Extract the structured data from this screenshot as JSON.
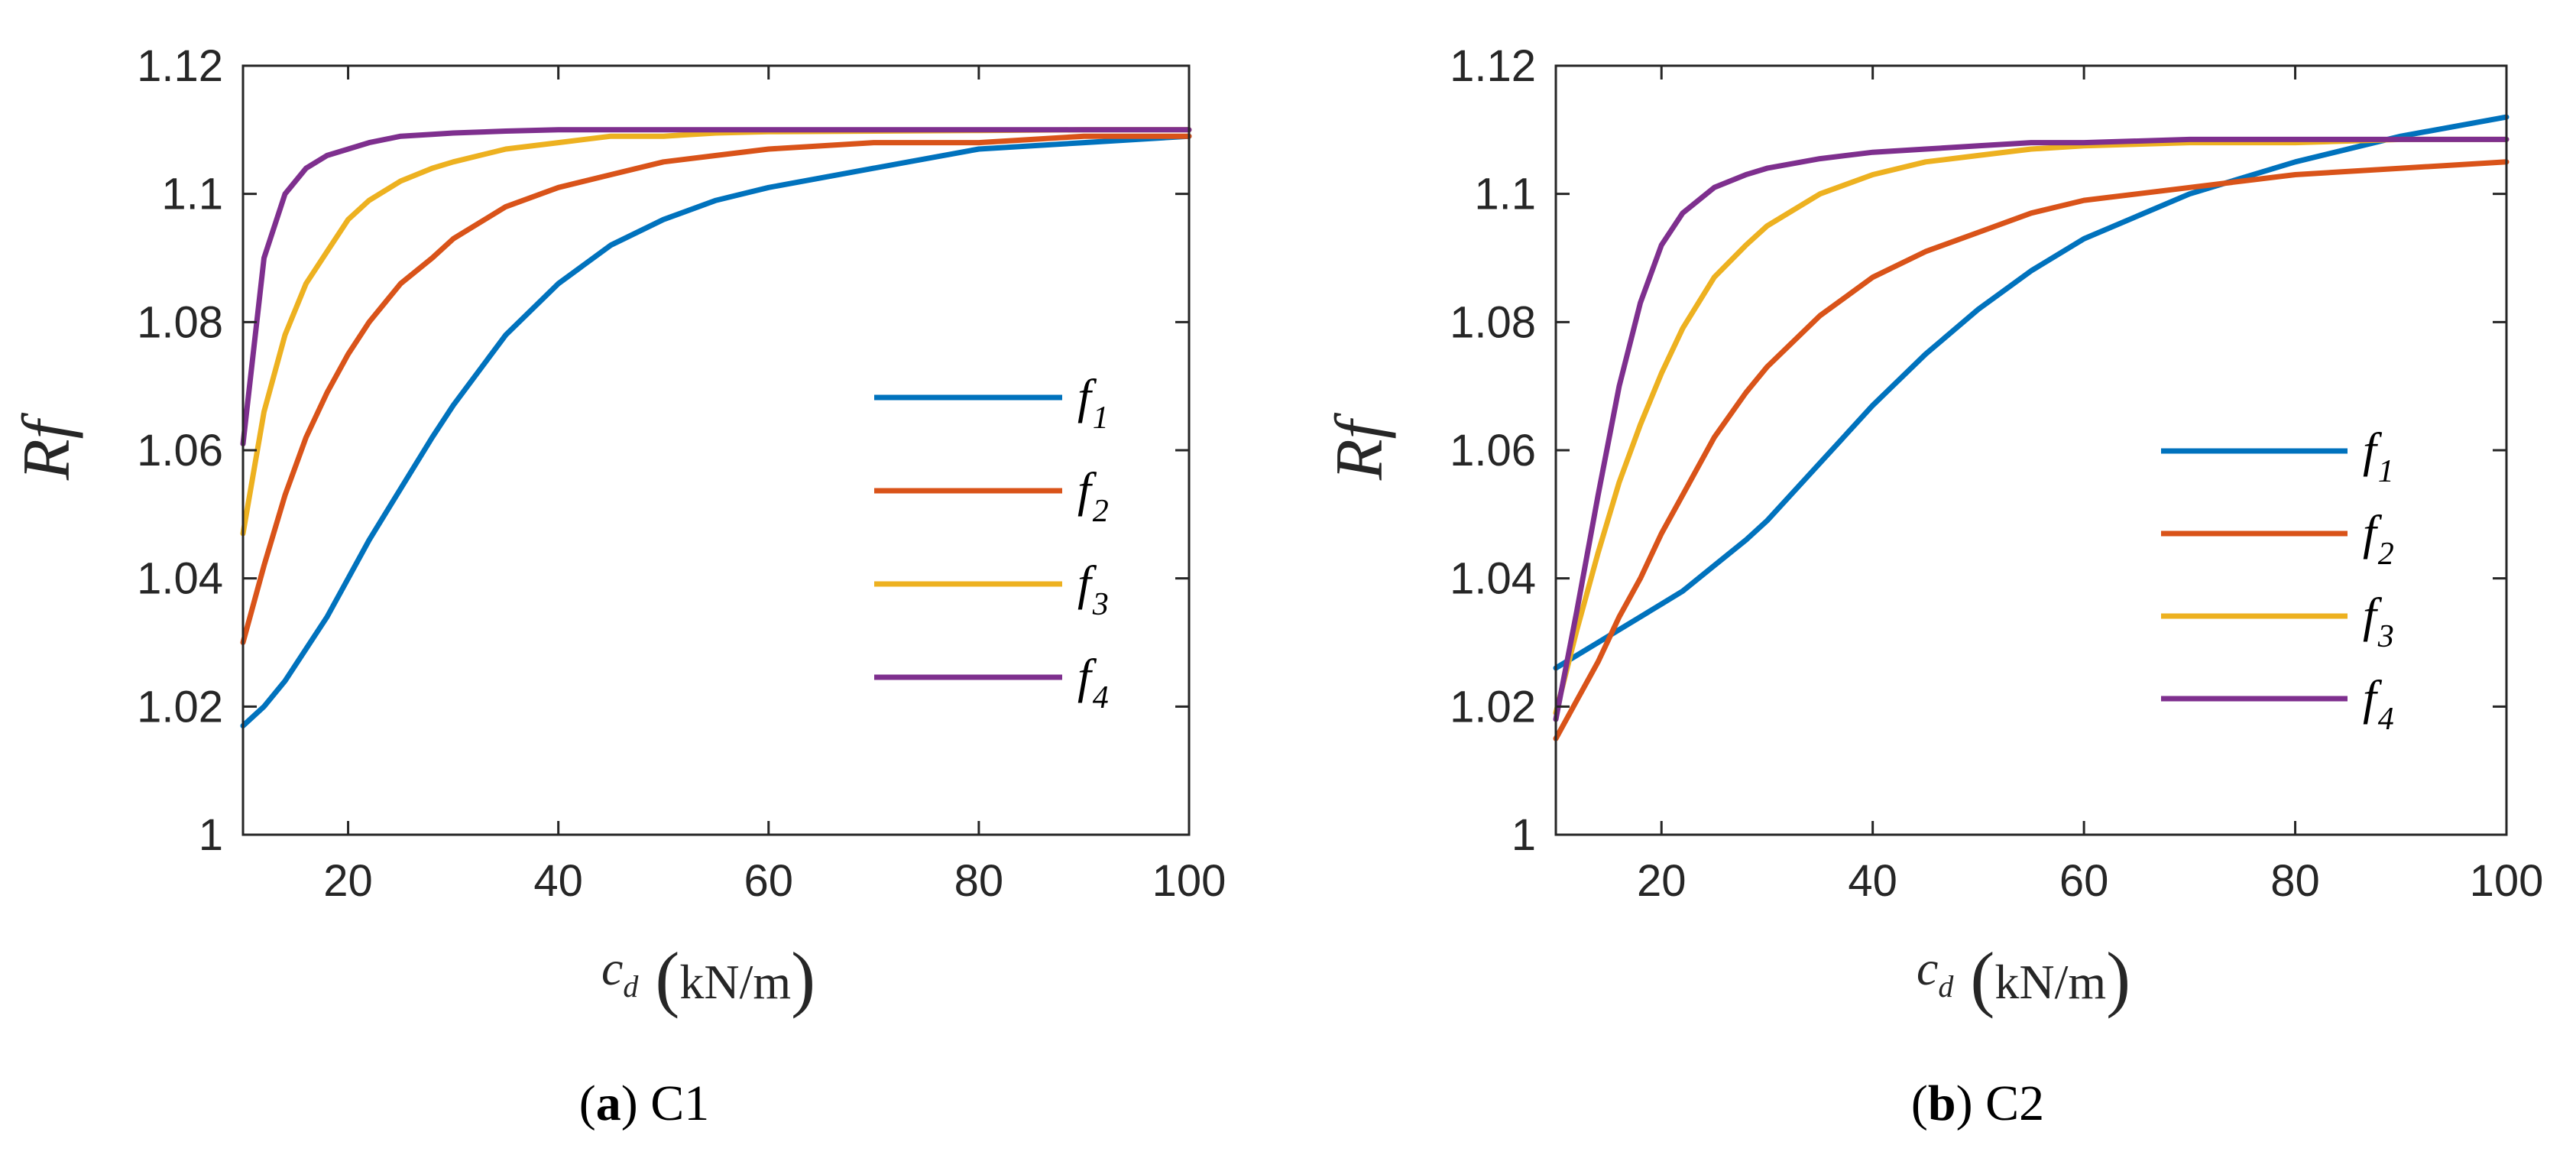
{
  "chart_data": [
    {
      "id": "a",
      "type": "line",
      "caption_letter": "a",
      "caption_text": "C1",
      "ylabel": "Rf",
      "xlabel_var": "c",
      "xlabel_sub": "d",
      "xlabel_unit": "kN/m",
      "xlim": [
        10,
        100
      ],
      "ylim": [
        1,
        1.12
      ],
      "xticks": [
        20,
        40,
        60,
        80,
        100
      ],
      "yticks": [
        1,
        1.02,
        1.04,
        1.06,
        1.08,
        1.1,
        1.12
      ],
      "ytick_labels": [
        "1",
        "1.02",
        "1.04",
        "1.06",
        "1.08",
        "1.1",
        "1.12"
      ],
      "legend_position": "center-right",
      "x": [
        10,
        12,
        14,
        16,
        18,
        20,
        22,
        25,
        28,
        30,
        35,
        40,
        45,
        50,
        55,
        60,
        70,
        80,
        90,
        100
      ],
      "series": [
        {
          "name": "f",
          "sub": "1",
          "color": "#0072BD",
          "values": [
            1.017,
            1.02,
            1.024,
            1.029,
            1.034,
            1.04,
            1.046,
            1.054,
            1.062,
            1.067,
            1.078,
            1.086,
            1.092,
            1.096,
            1.099,
            1.101,
            1.104,
            1.107,
            1.108,
            1.109
          ]
        },
        {
          "name": "f",
          "sub": "2",
          "color": "#D95319",
          "values": [
            1.03,
            1.042,
            1.053,
            1.062,
            1.069,
            1.075,
            1.08,
            1.086,
            1.09,
            1.093,
            1.098,
            1.101,
            1.103,
            1.105,
            1.106,
            1.107,
            1.108,
            1.108,
            1.109,
            1.109
          ]
        },
        {
          "name": "f",
          "sub": "3",
          "color": "#EDB120",
          "values": [
            1.047,
            1.066,
            1.078,
            1.086,
            1.091,
            1.096,
            1.099,
            1.102,
            1.104,
            1.105,
            1.107,
            1.108,
            1.109,
            1.109,
            1.1095,
            1.1097,
            1.1098,
            1.1099,
            1.11,
            1.11
          ]
        },
        {
          "name": "f",
          "sub": "4",
          "color": "#7E2F8E",
          "values": [
            1.061,
            1.09,
            1.1,
            1.104,
            1.106,
            1.107,
            1.108,
            1.109,
            1.1093,
            1.1095,
            1.1098,
            1.11,
            1.11,
            1.11,
            1.11,
            1.11,
            1.11,
            1.11,
            1.11,
            1.11
          ]
        }
      ]
    },
    {
      "id": "b",
      "type": "line",
      "caption_letter": "b",
      "caption_text": "C2",
      "ylabel": "Rf",
      "xlabel_var": "c",
      "xlabel_sub": "d",
      "xlabel_unit": "kN/m",
      "xlim": [
        10,
        100
      ],
      "ylim": [
        1,
        1.12
      ],
      "xticks": [
        20,
        40,
        60,
        80,
        100
      ],
      "yticks": [
        1,
        1.02,
        1.04,
        1.06,
        1.08,
        1.1,
        1.12
      ],
      "ytick_labels": [
        "1",
        "1.02",
        "1.04",
        "1.06",
        "1.08",
        "1.1",
        "1.12"
      ],
      "legend_position": "center-right",
      "x": [
        10,
        12,
        14,
        16,
        18,
        20,
        22,
        25,
        28,
        30,
        35,
        40,
        45,
        50,
        55,
        60,
        70,
        80,
        90,
        100
      ],
      "series": [
        {
          "name": "f",
          "sub": "1",
          "color": "#0072BD",
          "values": [
            1.026,
            1.028,
            1.03,
            1.032,
            1.034,
            1.036,
            1.038,
            1.042,
            1.046,
            1.049,
            1.058,
            1.067,
            1.075,
            1.082,
            1.088,
            1.093,
            1.1,
            1.105,
            1.109,
            1.112
          ]
        },
        {
          "name": "f",
          "sub": "2",
          "color": "#D95319",
          "values": [
            1.015,
            1.021,
            1.027,
            1.034,
            1.04,
            1.047,
            1.053,
            1.062,
            1.069,
            1.073,
            1.081,
            1.087,
            1.091,
            1.094,
            1.097,
            1.099,
            1.101,
            1.103,
            1.104,
            1.105
          ]
        },
        {
          "name": "f",
          "sub": "3",
          "color": "#EDB120",
          "values": [
            1.019,
            1.032,
            1.044,
            1.055,
            1.064,
            1.072,
            1.079,
            1.087,
            1.092,
            1.095,
            1.1,
            1.103,
            1.105,
            1.106,
            1.107,
            1.1075,
            1.108,
            1.108,
            1.1085,
            1.1085
          ]
        },
        {
          "name": "f",
          "sub": "4",
          "color": "#7E2F8E",
          "values": [
            1.018,
            1.035,
            1.053,
            1.07,
            1.083,
            1.092,
            1.097,
            1.101,
            1.103,
            1.104,
            1.1055,
            1.1065,
            1.107,
            1.1075,
            1.108,
            1.108,
            1.1085,
            1.1085,
            1.1085,
            1.1085
          ]
        }
      ]
    }
  ]
}
